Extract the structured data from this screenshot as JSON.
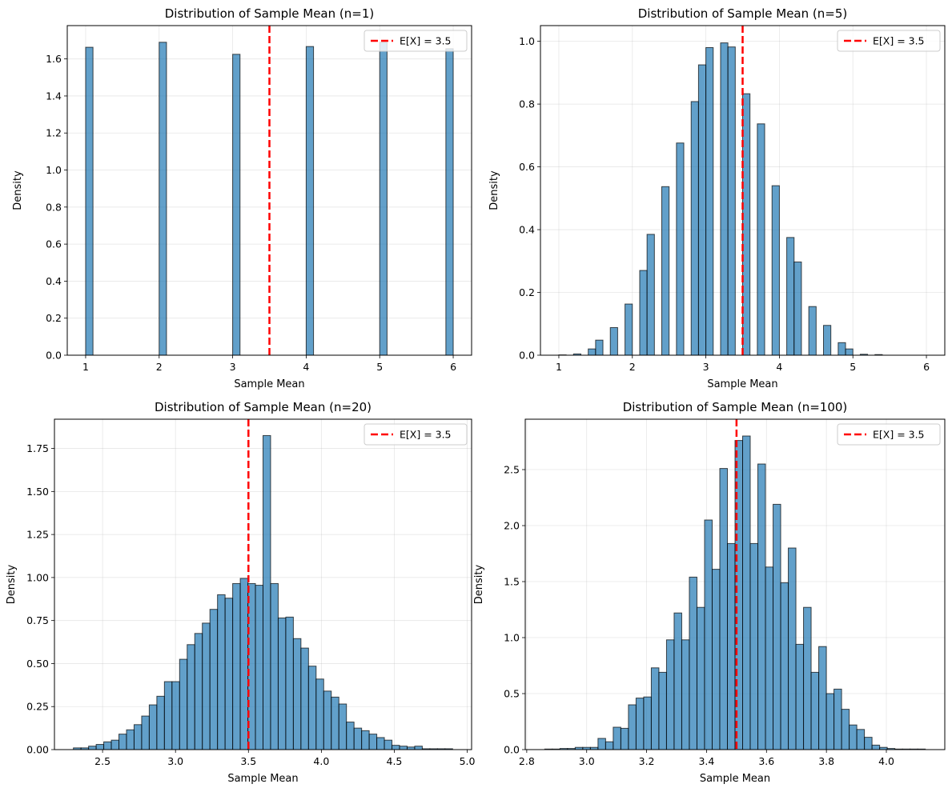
{
  "figure": {
    "layout": "2x2"
  },
  "colors": {
    "bar": "#1f77b4",
    "mean_line": "#ff0000"
  },
  "chart_data": [
    {
      "type": "bar",
      "title": "Distribution of Sample Mean (n=1)",
      "xlabel": "Sample Mean",
      "ylabel": "Density",
      "xlim": [
        0.75,
        6.25
      ],
      "ylim": [
        0,
        1.78
      ],
      "xticks": [
        1,
        2,
        3,
        4,
        5,
        6
      ],
      "xtick_labels": [
        "1",
        "2",
        "3",
        "4",
        "5",
        "6"
      ],
      "yticks": [
        0,
        0.2,
        0.4,
        0.6,
        0.8,
        1.0,
        1.2,
        1.4,
        1.6
      ],
      "ytick_labels": [
        "0.0",
        "0.2",
        "0.4",
        "0.6",
        "0.8",
        "1.0",
        "1.2",
        "1.4",
        "1.6"
      ],
      "bin_start": 1.0,
      "bin_width": 0.1,
      "values": [
        1.663,
        0,
        0,
        0,
        0,
        0,
        0,
        0,
        0,
        0,
        1.69,
        0,
        0,
        0,
        0,
        0,
        0,
        0,
        0,
        0,
        1.625,
        0,
        0,
        0,
        0,
        0,
        0,
        0,
        0,
        0,
        1.667,
        0,
        0,
        0,
        0,
        0,
        0,
        0,
        0,
        0,
        1.69,
        0,
        0,
        0,
        0,
        0,
        0,
        0,
        0,
        1.655
      ],
      "mean": 3.5,
      "legend": "E[X] = 3.5",
      "legend_loc": "upper right"
    },
    {
      "type": "bar",
      "title": "Distribution of Sample Mean (n=5)",
      "xlabel": "Sample Mean",
      "ylabel": "Density",
      "xlim": [
        0.75,
        6.25
      ],
      "ylim": [
        0,
        1.05
      ],
      "xticks": [
        1,
        2,
        3,
        4,
        5,
        6
      ],
      "xtick_labels": [
        "1",
        "2",
        "3",
        "4",
        "5",
        "6"
      ],
      "yticks": [
        0,
        0.2,
        0.4,
        0.6,
        0.8,
        1.0
      ],
      "ytick_labels": [
        "0.0",
        "0.2",
        "0.4",
        "0.6",
        "0.8",
        "1.0"
      ],
      "bin_start": 1.0,
      "bin_width": 0.1,
      "values": [
        0.001,
        0,
        0.004,
        0,
        0.02,
        0.048,
        0,
        0.088,
        0,
        0.163,
        0,
        0.27,
        0.385,
        0,
        0.537,
        0,
        0.676,
        0,
        0.808,
        0.925,
        0.98,
        0,
        0.995,
        0.982,
        0,
        0.833,
        0,
        0.737,
        0,
        0.54,
        0,
        0.375,
        0.297,
        0,
        0.155,
        0,
        0.095,
        0,
        0.04,
        0.02,
        0,
        0.003,
        0,
        0.002,
        0,
        0,
        0,
        0,
        0,
        0
      ],
      "mean": 3.5,
      "legend": "E[X] = 3.5",
      "legend_loc": "upper right"
    },
    {
      "type": "bar",
      "title": "Distribution of Sample Mean (n=20)",
      "xlabel": "Sample Mean",
      "ylabel": "Density",
      "xlim": [
        2.17,
        5.03
      ],
      "ylim": [
        0,
        1.92
      ],
      "xticks": [
        2.5,
        3.0,
        3.5,
        4.0,
        4.5,
        5.0
      ],
      "xtick_labels": [
        "2.5",
        "3.0",
        "3.5",
        "4.0",
        "4.5",
        "5.0"
      ],
      "yticks": [
        0,
        0.25,
        0.5,
        0.75,
        1.0,
        1.25,
        1.5,
        1.75
      ],
      "ytick_labels": [
        "0.00",
        "0.25",
        "0.50",
        "0.75",
        "1.00",
        "1.25",
        "1.50",
        "1.75"
      ],
      "bin_start": 2.3,
      "bin_width": 0.052,
      "values": [
        0.01,
        0.01,
        0.02,
        0.03,
        0.045,
        0.055,
        0.09,
        0.115,
        0.145,
        0.195,
        0.26,
        0.31,
        0.395,
        0.395,
        0.525,
        0.61,
        0.675,
        0.735,
        0.815,
        0.9,
        0.88,
        0.965,
        0.995,
        0.965,
        0.955,
        1.825,
        0.965,
        0.765,
        0.77,
        0.645,
        0.59,
        0.485,
        0.41,
        0.34,
        0.305,
        0.265,
        0.16,
        0.125,
        0.11,
        0.09,
        0.07,
        0.055,
        0.025,
        0.02,
        0.015,
        0.02,
        0.005,
        0.005,
        0.005,
        0.005
      ],
      "mean": 3.5,
      "legend": "E[X] = 3.5",
      "legend_loc": "upper right"
    },
    {
      "type": "bar",
      "title": "Distribution of Sample Mean (n=100)",
      "xlabel": "Sample Mean",
      "ylabel": "Density",
      "xlim": [
        2.795,
        4.195
      ],
      "ylim": [
        0,
        2.95
      ],
      "xticks": [
        2.8,
        3.0,
        3.2,
        3.4,
        3.6,
        3.8,
        4.0
      ],
      "xtick_labels": [
        "2.8",
        "3.0",
        "3.2",
        "3.4",
        "3.6",
        "3.8",
        "4.0"
      ],
      "yticks": [
        0,
        0.5,
        1.0,
        1.5,
        2.0,
        2.5
      ],
      "ytick_labels": [
        "0.0",
        "0.5",
        "1.0",
        "1.5",
        "2.0",
        "2.5"
      ],
      "bin_start": 2.86,
      "bin_width": 0.0254,
      "values": [
        0.005,
        0.005,
        0.01,
        0.01,
        0.02,
        0.02,
        0.02,
        0.1,
        0.07,
        0.2,
        0.19,
        0.4,
        0.46,
        0.47,
        0.73,
        0.69,
        0.98,
        1.22,
        0.98,
        1.54,
        1.27,
        2.05,
        1.61,
        2.51,
        1.84,
        2.76,
        2.8,
        1.84,
        2.55,
        1.63,
        2.19,
        1.49,
        1.8,
        0.94,
        1.27,
        0.69,
        0.92,
        0.5,
        0.54,
        0.36,
        0.22,
        0.18,
        0.11,
        0.04,
        0.02,
        0.01,
        0.005,
        0.005,
        0.005,
        0.005
      ],
      "mean": 3.5,
      "legend": "E[X] = 3.5",
      "legend_loc": "upper right"
    }
  ]
}
